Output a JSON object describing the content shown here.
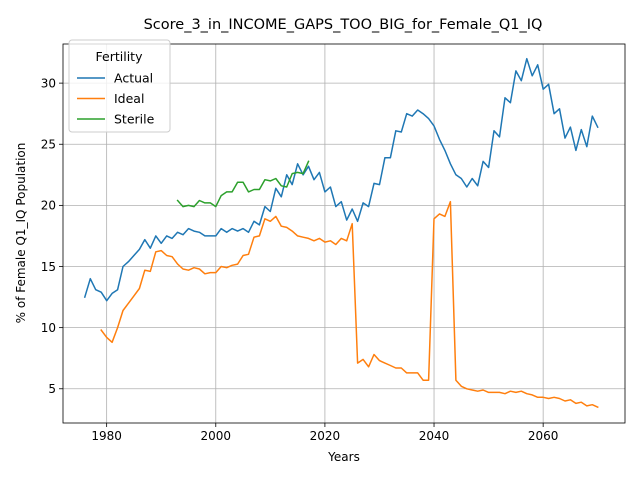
{
  "chart_data": {
    "type": "line",
    "title": "Score_3_in_INCOME_GAPS_TOO_BIG_for_Female_Q1_IQ",
    "xlabel": "Years",
    "ylabel": "% of Female Q1_IQ Population",
    "xlim": [
      1972,
      2075
    ],
    "ylim": [
      2.2,
      33.2
    ],
    "xticks": [
      1980,
      2000,
      2020,
      2040,
      2060
    ],
    "yticks": [
      5,
      10,
      15,
      20,
      25,
      30
    ],
    "grid": true,
    "legend": {
      "title": "Fertility",
      "position": "top-left"
    },
    "series": [
      {
        "name": "Actual",
        "color": "#1f77b4",
        "x": [
          1976,
          1977,
          1978,
          1979,
          1980,
          1981,
          1982,
          1983,
          1984,
          1985,
          1986,
          1987,
          1988,
          1989,
          1990,
          1991,
          1992,
          1993,
          1994,
          1995,
          1996,
          1997,
          1998,
          1999,
          2000,
          2001,
          2002,
          2003,
          2004,
          2005,
          2006,
          2007,
          2008,
          2009,
          2010,
          2011,
          2012,
          2013,
          2014,
          2015,
          2016,
          2017,
          2018,
          2019,
          2020,
          2021,
          2022,
          2023,
          2024,
          2025,
          2026,
          2027,
          2028,
          2029,
          2030,
          2031,
          2032,
          2033,
          2034,
          2035,
          2036,
          2037,
          2038,
          2039,
          2040,
          2041,
          2042,
          2043,
          2044,
          2045,
          2046,
          2047,
          2048,
          2049,
          2050,
          2051,
          2052,
          2053,
          2054,
          2055,
          2056,
          2057,
          2058,
          2059,
          2060,
          2061,
          2062,
          2063,
          2064,
          2065,
          2066,
          2067,
          2068,
          2069,
          2070
        ],
        "y": [
          12.5,
          14.0,
          13.1,
          12.9,
          12.2,
          12.8,
          13.1,
          15.0,
          15.4,
          15.9,
          16.4,
          17.2,
          16.5,
          17.5,
          16.9,
          17.5,
          17.3,
          17.8,
          17.6,
          18.1,
          17.9,
          17.8,
          17.5,
          17.5,
          17.5,
          18.1,
          17.8,
          18.1,
          17.9,
          18.1,
          17.8,
          18.7,
          18.4,
          19.9,
          19.5,
          21.4,
          20.7,
          22.5,
          21.7,
          23.4,
          22.5,
          23.2,
          22.1,
          22.7,
          21.1,
          21.5,
          19.9,
          20.3,
          18.8,
          19.7,
          18.7,
          20.2,
          19.9,
          21.8,
          21.7,
          23.9,
          23.9,
          26.1,
          26.0,
          27.5,
          27.3,
          27.8,
          27.5,
          27.1,
          26.5,
          25.4,
          24.5,
          23.4,
          22.5,
          22.2,
          21.5,
          22.2,
          21.6,
          23.6,
          23.1,
          26.1,
          25.6,
          28.8,
          28.4,
          31.0,
          30.2,
          32.0,
          30.6,
          31.5,
          29.5,
          29.9,
          27.5,
          27.9,
          25.5,
          26.4,
          24.5,
          26.2,
          24.8,
          27.3,
          26.4
        ]
      },
      {
        "name": "Ideal",
        "color": "#ff7f0e",
        "x": [
          1979,
          1980,
          1981,
          1982,
          1983,
          1984,
          1985,
          1986,
          1987,
          1988,
          1989,
          1990,
          1991,
          1992,
          1993,
          1994,
          1995,
          1996,
          1997,
          1998,
          1999,
          2000,
          2001,
          2002,
          2003,
          2004,
          2005,
          2006,
          2007,
          2008,
          2009,
          2010,
          2011,
          2012,
          2013,
          2014,
          2015,
          2016,
          2017,
          2018,
          2019,
          2020,
          2021,
          2022,
          2023,
          2024,
          2025,
          2026,
          2027,
          2028,
          2029,
          2030,
          2031,
          2032,
          2033,
          2034,
          2035,
          2036,
          2037,
          2038,
          2039,
          2040,
          2041,
          2042,
          2043,
          2044,
          2045,
          2046,
          2047,
          2048,
          2049,
          2050,
          2051,
          2052,
          2053,
          2054,
          2055,
          2056,
          2057,
          2058,
          2059,
          2060,
          2061,
          2062,
          2063,
          2064,
          2065,
          2066,
          2067,
          2068,
          2069,
          2070
        ],
        "y": [
          9.8,
          9.2,
          8.8,
          10.0,
          11.4,
          12.0,
          12.6,
          13.2,
          14.7,
          14.6,
          16.2,
          16.3,
          15.9,
          15.8,
          15.2,
          14.8,
          14.7,
          14.9,
          14.8,
          14.4,
          14.5,
          14.5,
          15.0,
          14.9,
          15.1,
          15.2,
          15.9,
          16.0,
          17.4,
          17.5,
          18.9,
          18.7,
          19.1,
          18.3,
          18.2,
          17.9,
          17.5,
          17.4,
          17.3,
          17.1,
          17.3,
          17.0,
          17.1,
          16.8,
          17.3,
          17.1,
          18.5,
          7.1,
          7.4,
          6.8,
          7.8,
          7.3,
          7.1,
          6.9,
          6.7,
          6.7,
          6.3,
          6.3,
          6.3,
          5.7,
          5.7,
          18.9,
          19.3,
          19.1,
          20.3,
          5.7,
          5.2,
          5.0,
          4.9,
          4.8,
          4.9,
          4.7,
          4.7,
          4.7,
          4.6,
          4.8,
          4.7,
          4.8,
          4.6,
          4.5,
          4.3,
          4.3,
          4.2,
          4.3,
          4.2,
          4.0,
          4.1,
          3.8,
          3.9,
          3.6,
          3.7,
          3.5
        ]
      },
      {
        "name": "Sterile",
        "color": "#2ca02c",
        "x": [
          1993,
          1994,
          1995,
          1996,
          1997,
          1998,
          1999,
          2000,
          2001,
          2002,
          2003,
          2004,
          2005,
          2006,
          2007,
          2008,
          2009,
          2010,
          2011,
          2012,
          2013,
          2014,
          2015,
          2016,
          2017
        ],
        "y": [
          20.4,
          19.9,
          20.0,
          19.9,
          20.4,
          20.2,
          20.2,
          19.9,
          20.8,
          21.1,
          21.1,
          21.9,
          21.9,
          21.1,
          21.3,
          21.3,
          22.1,
          22.0,
          22.2,
          21.6,
          21.5,
          22.6,
          22.7,
          22.6,
          23.6
        ]
      }
    ]
  }
}
